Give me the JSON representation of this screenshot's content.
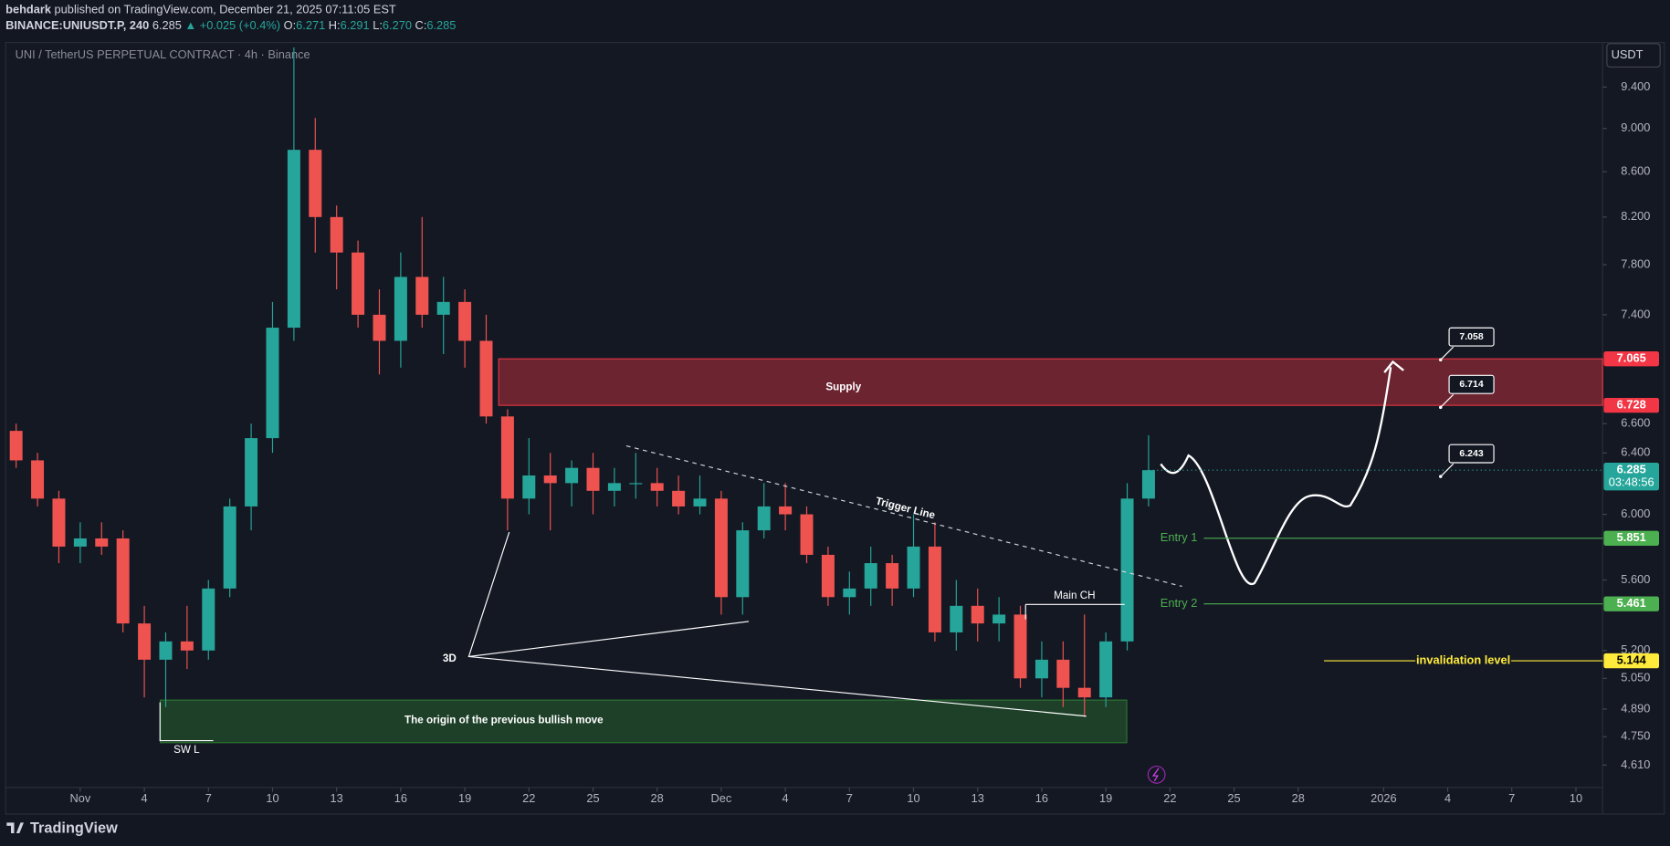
{
  "header": {
    "author": "behdark",
    "published": "published on TradingView.com, December 21, 2025 07:11:05 EST",
    "symbol": "BINANCE:UNIUSDT.P, 240",
    "last": "6.285",
    "change": "▲ +0.025 (+0.4%)",
    "ohlc": [
      {
        "k": "O:",
        "v": "6.271"
      },
      {
        "k": "H:",
        "v": "6.291"
      },
      {
        "k": "L:",
        "v": "6.270"
      },
      {
        "k": "C:",
        "v": "6.285"
      }
    ]
  },
  "chart_data": {
    "type": "candlestick",
    "title": "UNI / TetherUS PERPETUAL CONTRACT · 4h · Binance",
    "currency": "USDT",
    "log": true,
    "up_color": "#26a69a",
    "down_color": "#ef5350",
    "x": [
      "2025-10-29",
      "2025-10-30",
      "2025-10-31",
      "2025-11-01",
      "2025-11-02",
      "2025-11-03",
      "2025-11-04",
      "2025-11-05",
      "2025-11-06",
      "2025-11-07",
      "2025-11-08",
      "2025-11-09",
      "2025-11-10",
      "2025-11-11",
      "2025-11-12",
      "2025-11-13",
      "2025-11-14",
      "2025-11-15",
      "2025-11-16",
      "2025-11-17",
      "2025-11-18",
      "2025-11-19",
      "2025-11-20",
      "2025-11-21",
      "2025-11-22",
      "2025-11-23",
      "2025-11-24",
      "2025-11-25",
      "2025-11-26",
      "2025-11-27",
      "2025-11-28",
      "2025-11-29",
      "2025-11-30",
      "2025-12-01",
      "2025-12-02",
      "2025-12-03",
      "2025-12-04",
      "2025-12-05",
      "2025-12-06",
      "2025-12-07",
      "2025-12-08",
      "2025-12-09",
      "2025-12-10",
      "2025-12-11",
      "2025-12-12",
      "2025-12-13",
      "2025-12-14",
      "2025-12-15",
      "2025-12-16",
      "2025-12-17",
      "2025-12-18",
      "2025-12-19",
      "2025-12-20",
      "2025-12-21"
    ],
    "open": [
      6.55,
      6.35,
      6.1,
      5.8,
      5.85,
      5.85,
      5.35,
      5.15,
      5.25,
      5.2,
      5.55,
      6.05,
      6.5,
      7.3,
      8.8,
      8.2,
      7.9,
      7.4,
      7.2,
      7.7,
      7.4,
      7.5,
      7.2,
      6.65,
      6.1,
      6.25,
      6.2,
      6.3,
      6.15,
      6.2,
      6.2,
      6.15,
      6.05,
      6.1,
      5.5,
      5.9,
      6.05,
      6.0,
      5.75,
      5.5,
      5.55,
      5.7,
      5.55,
      5.8,
      5.3,
      5.45,
      5.35,
      5.4,
      5.05,
      5.15,
      5.0,
      4.95,
      5.25,
      6.1
    ],
    "high": [
      6.6,
      6.4,
      6.15,
      5.95,
      5.95,
      5.9,
      5.45,
      5.3,
      5.45,
      5.6,
      6.1,
      6.6,
      7.5,
      9.8,
      9.1,
      8.3,
      8.0,
      7.6,
      7.9,
      8.2,
      7.7,
      7.6,
      7.4,
      6.7,
      6.5,
      6.4,
      6.35,
      6.4,
      6.3,
      6.4,
      6.3,
      6.25,
      6.25,
      6.15,
      5.95,
      6.2,
      6.2,
      6.05,
      5.8,
      5.65,
      5.8,
      5.75,
      6.0,
      5.95,
      5.6,
      5.55,
      5.5,
      5.45,
      5.25,
      5.25,
      5.4,
      5.3,
      6.2,
      6.52
    ],
    "low": [
      6.3,
      6.05,
      5.7,
      5.7,
      5.75,
      5.3,
      4.95,
      4.9,
      5.1,
      5.15,
      5.5,
      5.9,
      6.4,
      7.2,
      7.9,
      7.6,
      7.3,
      6.95,
      7.0,
      7.3,
      7.1,
      7.0,
      6.6,
      5.9,
      6.0,
      5.9,
      6.05,
      6.0,
      6.05,
      6.1,
      6.05,
      6.0,
      6.0,
      5.4,
      5.4,
      5.85,
      5.9,
      5.7,
      5.45,
      5.4,
      5.45,
      5.45,
      5.5,
      5.25,
      5.2,
      5.25,
      5.25,
      5.0,
      4.95,
      4.9,
      4.85,
      4.9,
      5.2,
      6.05
    ],
    "close": [
      6.35,
      6.1,
      5.8,
      5.85,
      5.8,
      5.35,
      5.15,
      5.25,
      5.2,
      5.55,
      6.05,
      6.5,
      7.3,
      8.8,
      8.2,
      7.9,
      7.4,
      7.2,
      7.7,
      7.4,
      7.5,
      7.2,
      6.65,
      6.1,
      6.25,
      6.2,
      6.3,
      6.15,
      6.2,
      6.2,
      6.15,
      6.05,
      6.1,
      5.5,
      5.9,
      6.05,
      6.0,
      5.75,
      5.5,
      5.55,
      5.7,
      5.55,
      5.8,
      5.3,
      5.45,
      5.35,
      5.4,
      5.05,
      5.15,
      5.0,
      4.95,
      5.25,
      6.1,
      6.285
    ],
    "countdown": "03:48:56",
    "ylim": [
      4.503,
      9.85
    ],
    "yticks": [
      {
        "value": 9.4,
        "label": "9.400"
      },
      {
        "value": 9.0,
        "label": "9.000"
      },
      {
        "value": 8.6,
        "label": "8.600"
      },
      {
        "value": 8.2,
        "label": "8.200"
      },
      {
        "value": 7.8,
        "label": "7.800"
      },
      {
        "value": 7.4,
        "label": "7.400"
      },
      {
        "value": 6.6,
        "label": "6.600"
      },
      {
        "value": 6.4,
        "label": "6.400"
      },
      {
        "value": 6.0,
        "label": "6.000"
      },
      {
        "value": 5.6,
        "label": "5.600"
      },
      {
        "value": 5.2,
        "label": "5.200"
      },
      {
        "value": 5.05,
        "label": "5.050"
      },
      {
        "value": 4.89,
        "label": "4.890"
      },
      {
        "value": 4.75,
        "label": "4.750"
      },
      {
        "value": 4.61,
        "label": "4.610"
      }
    ],
    "xlim": [
      "2025-10-28T12:12",
      "2026-01-11T06:00"
    ],
    "xticks": [
      {
        "value": "2025-11-01",
        "label": "Nov"
      },
      {
        "value": "2025-11-04",
        "label": "4"
      },
      {
        "value": "2025-11-07",
        "label": "7"
      },
      {
        "value": "2025-11-10",
        "label": "10"
      },
      {
        "value": "2025-11-13",
        "label": "13"
      },
      {
        "value": "2025-11-16",
        "label": "16"
      },
      {
        "value": "2025-11-19",
        "label": "19"
      },
      {
        "value": "2025-11-22",
        "label": "22"
      },
      {
        "value": "2025-11-25",
        "label": "25"
      },
      {
        "value": "2025-11-28",
        "label": "28"
      },
      {
        "value": "2025-12-01",
        "label": "Dec"
      },
      {
        "value": "2025-12-04",
        "label": "4"
      },
      {
        "value": "2025-12-07",
        "label": "7"
      },
      {
        "value": "2025-12-10",
        "label": "10"
      },
      {
        "value": "2025-12-13",
        "label": "13"
      },
      {
        "value": "2025-12-16",
        "label": "16"
      },
      {
        "value": "2025-12-19",
        "label": "19"
      },
      {
        "value": "2025-12-22",
        "label": "22"
      },
      {
        "value": "2025-12-25",
        "label": "25"
      },
      {
        "value": "2025-12-28",
        "label": "28"
      },
      {
        "value": "2026-01-01",
        "label": "2026"
      },
      {
        "value": "2026-01-04",
        "label": "4"
      },
      {
        "value": "2026-01-07",
        "label": "7"
      },
      {
        "value": "2026-01-10",
        "label": "10"
      }
    ],
    "zones": [
      {
        "name": "Supply",
        "low": 6.728,
        "high": 7.065,
        "start": "2025-11-20T14:00",
        "color": "#f23645",
        "badges": true
      },
      {
        "name": "The origin of the previous bullish move",
        "low": 4.72,
        "high": 4.936,
        "start": "2025-11-04T18:00",
        "end": "2025-12-19T23:30",
        "color": "#2e7d32",
        "badges": false
      }
    ],
    "levels": [
      {
        "name": "Entry 1",
        "value": 5.851,
        "start": "2025-12-23T14:00",
        "color": "#4caf50",
        "label_position": "left"
      },
      {
        "name": "Entry 2",
        "value": 5.461,
        "start": "2025-12-23T14:00",
        "color": "#4caf50",
        "label_position": "left"
      },
      {
        "name": "invalidation level",
        "value": 5.144,
        "start": "2025-12-29T05:00",
        "color": "#ffeb3b",
        "label_position": "center"
      }
    ],
    "callouts": [
      {
        "value": 7.058,
        "at": "2026-01-03T16:00"
      },
      {
        "value": 6.714,
        "at": "2026-01-03T16:00"
      },
      {
        "value": 6.243,
        "at": "2026-01-03T16:00"
      }
    ],
    "annotations": {
      "trigger": "Trigger Line",
      "main_ch": "Main CH",
      "three_d": "3D",
      "swing_low": "SW L"
    }
  },
  "footer": {
    "brand": "TradingView"
  }
}
